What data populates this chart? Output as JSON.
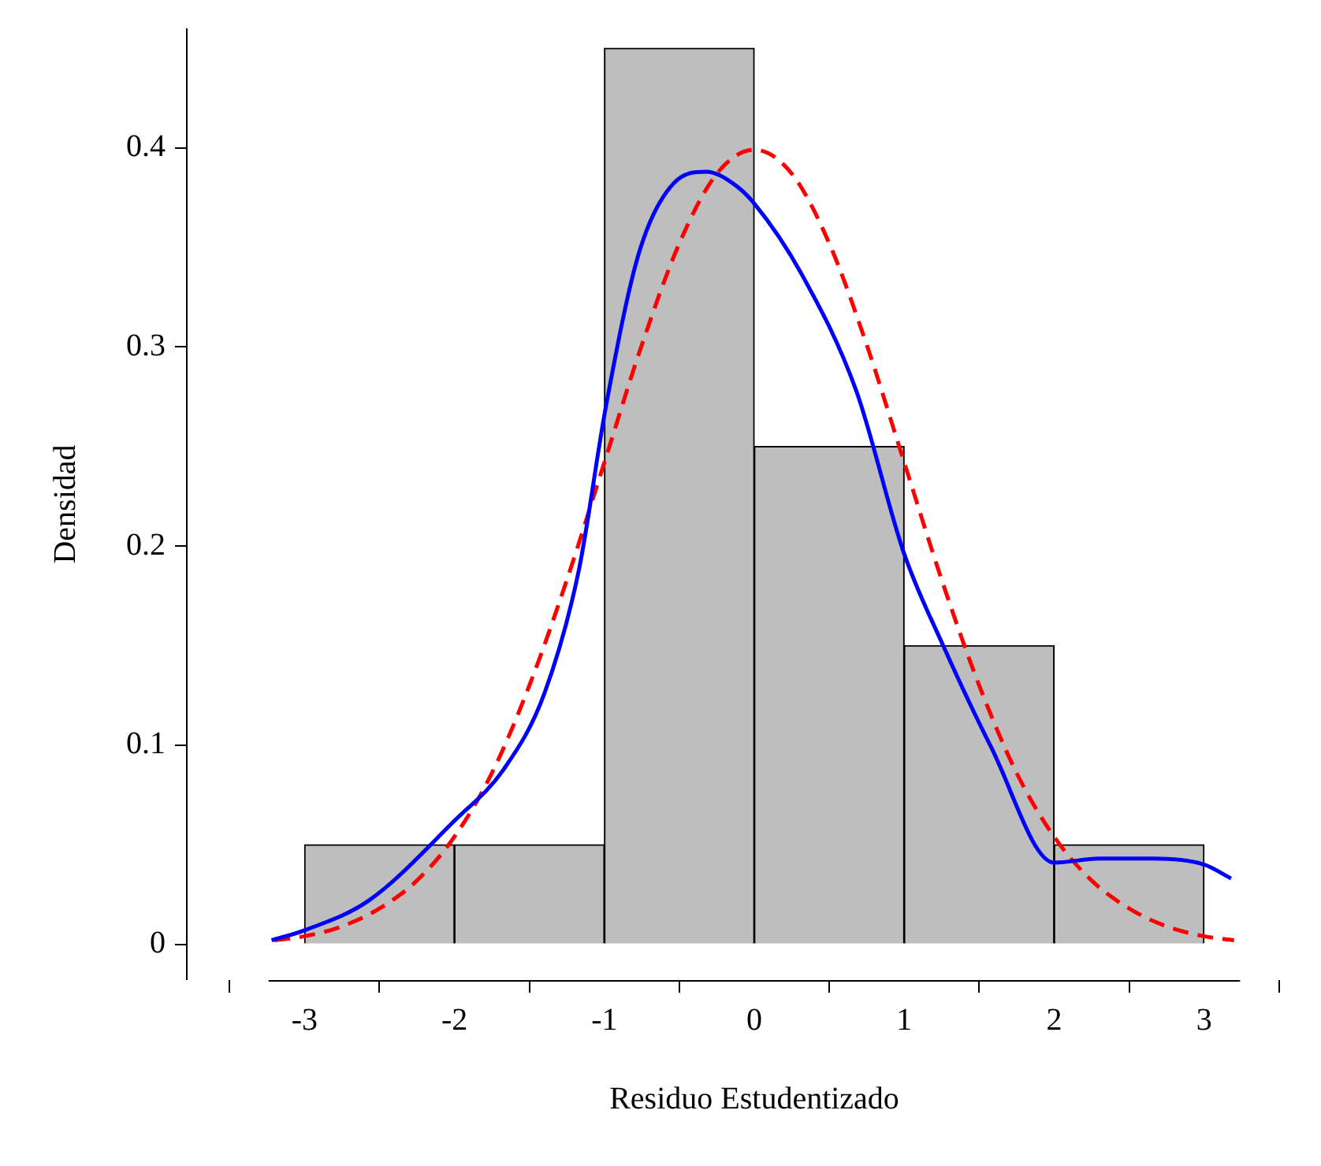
{
  "chart_data": {
    "type": "histogram",
    "xlabel": "Residuo Estudentizado",
    "ylabel": "Densidad",
    "bins": [
      -3,
      -2,
      -1,
      0,
      1,
      2,
      3
    ],
    "values": [
      0.05,
      0.05,
      0.45,
      0.25,
      0.15,
      0.05
    ],
    "color": "#bebebe",
    "series": [
      {
        "type": "line",
        "color": "#0000ff",
        "line_style": "solid",
        "x": [
          -3.22,
          -3,
          -2.57,
          -2,
          -1.67,
          -1.4,
          -1.17,
          -0.99,
          -0.77,
          -0.54,
          -0.32,
          -0.14,
          0,
          0.32,
          0.68,
          1,
          1.26,
          1.58,
          2,
          2.3,
          2.66,
          3,
          3.18
        ],
        "values": [
          0.002,
          0.007,
          0.022,
          0.062,
          0.088,
          0.126,
          0.188,
          0.27,
          0.347,
          0.382,
          0.388,
          0.382,
          0.372,
          0.336,
          0.278,
          0.196,
          0.15,
          0.099,
          0.041,
          0.043,
          0.043,
          0.04,
          0.033
        ]
      },
      {
        "type": "line",
        "color": "#ff0000",
        "line_style": "dashed",
        "x": [
          -3.2,
          -3,
          -2.75,
          -2.5,
          -2.25,
          -2,
          -1.75,
          -1.5,
          -1.25,
          -1,
          -0.75,
          -0.5,
          -0.25,
          0,
          0.25,
          0.5,
          0.75,
          1,
          1.25,
          1.5,
          1.75,
          2,
          2.25,
          2.5,
          2.75,
          3,
          3.2
        ],
        "values": [
          0.002,
          0.004,
          0.009,
          0.018,
          0.032,
          0.054,
          0.086,
          0.13,
          0.183,
          0.242,
          0.301,
          0.352,
          0.387,
          0.399,
          0.387,
          0.352,
          0.301,
          0.242,
          0.183,
          0.13,
          0.086,
          0.054,
          0.032,
          0.018,
          0.009,
          0.004,
          0.002
        ]
      }
    ],
    "xlim": [
      -3.24,
      3.24
    ],
    "ylim": [
      -0.018,
      0.46
    ],
    "xticks": [
      -3,
      -2,
      -1,
      0,
      1,
      2,
      3
    ],
    "yticks": [
      0,
      0.1,
      0.2,
      0.3,
      0.4
    ],
    "grid": false,
    "legend": false,
    "marker": "none"
  }
}
